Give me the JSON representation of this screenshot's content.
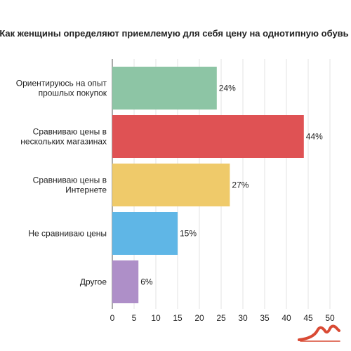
{
  "chart_data": {
    "type": "bar",
    "orientation": "horizontal",
    "title": "Как женщины определяют приемлемую для себя цену на однотипную обувь",
    "xlabel": "",
    "ylabel": "",
    "categories": [
      [
        "Ориентируюсь на опыт",
        "прошлых покупок"
      ],
      [
        "Сравниваю цены в",
        "нескольких магазинах"
      ],
      [
        "Сравниваю цены в",
        "Интернете"
      ],
      [
        "Не сравниваю цены"
      ],
      [
        "Другое"
      ]
    ],
    "values": [
      24,
      44,
      27,
      15,
      6
    ],
    "value_labels": [
      "24%",
      "44%",
      "27%",
      "15%",
      "6%"
    ],
    "colors": [
      "#8dc5a5",
      "#df5254",
      "#efca6a",
      "#5fb6e6",
      "#ae8fc8"
    ],
    "xlim": [
      0,
      52
    ],
    "xticks": [
      0,
      5,
      10,
      15,
      20,
      25,
      30,
      35,
      40,
      45,
      50
    ],
    "grid": true,
    "legend": "none"
  },
  "logo": {
    "color": "#d94a34"
  }
}
